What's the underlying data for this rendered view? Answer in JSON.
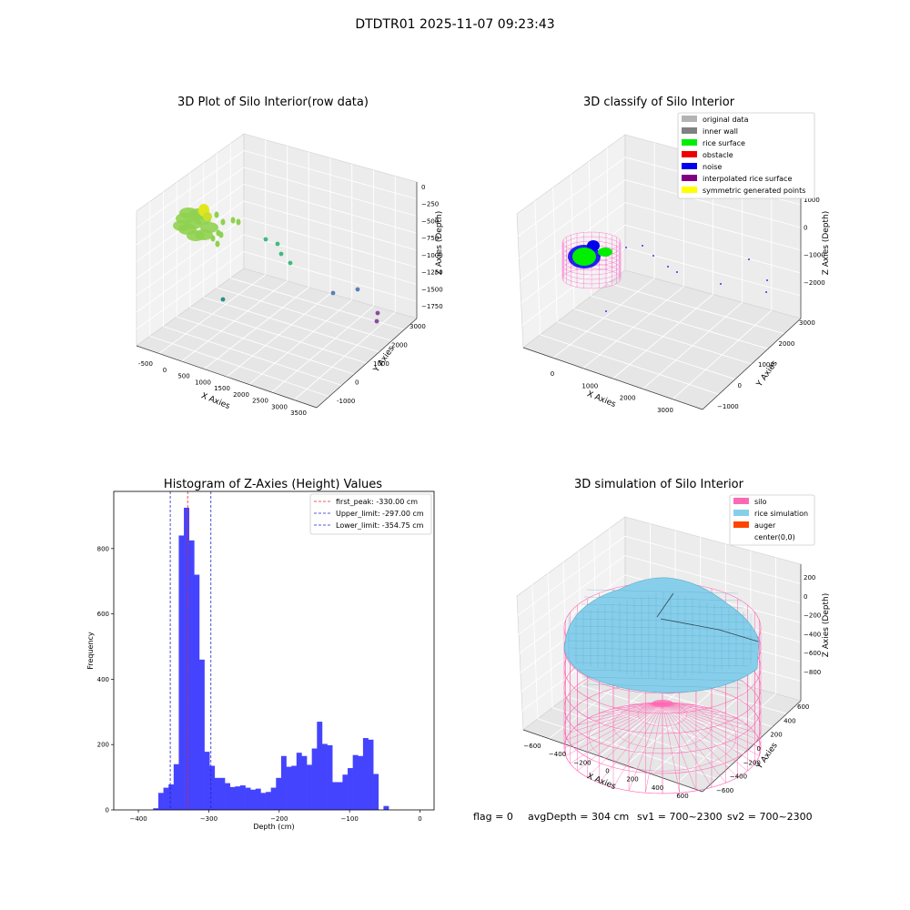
{
  "suptitle": "DTDTR01 2025-11-07 09:23:43",
  "footer": {
    "flag": "flag = 0",
    "avg": "avgDepth = 304 cm",
    "sv1": "sv1 = 700~2300",
    "sv2": "sv2 = 700~2300"
  },
  "chart_data": [
    {
      "type": "scatter",
      "title": "3D Plot of Silo Interior(row data)",
      "xlabel": "X Axies",
      "ylabel": "Y Axies",
      "zlabel": "Z Axies (Depth)",
      "x_ticks": [
        "-500",
        "0",
        "500",
        "1000",
        "1500",
        "2000",
        "2500",
        "3000",
        "3500"
      ],
      "y_ticks": [
        "-1000",
        "0",
        "1000",
        "2000",
        "3000"
      ],
      "z_ticks": [
        "0",
        "−250",
        "−500",
        "−750",
        "−1000",
        "−1250",
        "−1500",
        "−1750"
      ],
      "colors": {
        "cluster": "#8fd14f",
        "cluster_top": "#e3e61c",
        "mid": "#3ebb80",
        "low": "#2a8f8a",
        "far": "#5a7fb8",
        "deep": "#8a4aa0"
      }
    },
    {
      "type": "scatter",
      "title": "3D classify of Silo Interior",
      "xlabel": "X Axies",
      "ylabel": "Y Axies",
      "zlabel": "Z Axies (Depth)",
      "x_ticks": [
        "0",
        "1000",
        "2000",
        "3000"
      ],
      "y_ticks": [
        "−1000",
        "0",
        "1000",
        "2000",
        "3000"
      ],
      "z_ticks": [
        "1000",
        "0",
        "−1000",
        "−2000"
      ],
      "legend": [
        {
          "label": "original data",
          "color": "#b3b3b3"
        },
        {
          "label": "inner wall",
          "color": "#808080"
        },
        {
          "label": "rice surface",
          "color": "#00ee00"
        },
        {
          "label": "obstacle",
          "color": "#ee0000"
        },
        {
          "label": "noise",
          "color": "#0000ee"
        },
        {
          "label": "interpolated rice surface",
          "color": "#800080"
        },
        {
          "label": "symmetric generated points",
          "color": "#ffff00"
        }
      ],
      "legend_position": "top-right"
    },
    {
      "type": "bar",
      "title": "Histogram of Z-Axies (Height) Values",
      "xlabel": "Depth (cm)",
      "ylabel": "Frequency",
      "xlim": [
        -435,
        20
      ],
      "ylim": [
        0,
        975
      ],
      "x_ticks": [
        -400,
        -300,
        -200,
        -100,
        0
      ],
      "x_tick_labels": [
        "−400",
        "−300",
        "−200",
        "−100",
        "0"
      ],
      "y_ticks": [
        0,
        200,
        400,
        600,
        800
      ],
      "y_tick_labels": [
        "0",
        "200",
        "400",
        "600",
        "800"
      ],
      "bin_start": -379,
      "bin_width": 7.27,
      "values": [
        5,
        52,
        68,
        78,
        140,
        840,
        925,
        825,
        720,
        460,
        178,
        135,
        98,
        98,
        82,
        70,
        72,
        75,
        68,
        62,
        65,
        52,
        55,
        68,
        98,
        165,
        132,
        135,
        175,
        165,
        138,
        188,
        270,
        202,
        198,
        85,
        85,
        108,
        128,
        168,
        165,
        220,
        215,
        110,
        0,
        12
      ],
      "bar_color": "#4444ff",
      "lines": [
        {
          "x": -330.0,
          "label": "first_peak: -330.00 cm",
          "color": "#ee2222"
        },
        {
          "x": -297.0,
          "label": "Upper_limit: -297.00 cm",
          "color": "#2222cc"
        },
        {
          "x": -354.75,
          "label": "Lower_limit: -354.75 cm",
          "color": "#2222cc"
        }
      ],
      "legend_position": "top-right"
    },
    {
      "type": "surface",
      "title": "3D simulation of Silo Interior",
      "xlabel": "X Axies",
      "ylabel": "Y Axies",
      "zlabel": "Z Axies (Depth)",
      "x_ticks": [
        "−600",
        "−400",
        "−200",
        "0",
        "200",
        "400",
        "600"
      ],
      "y_ticks": [
        "−600",
        "−400",
        "−200",
        "0",
        "200",
        "400",
        "600"
      ],
      "z_ticks": [
        "200",
        "0",
        "−200",
        "−400",
        "−600",
        "−800"
      ],
      "legend": [
        {
          "label": "silo",
          "color": "#ff69b4"
        },
        {
          "label": "rice simulation",
          "color": "#87ceeb"
        },
        {
          "label": "auger",
          "color": "#ff4500"
        },
        {
          "label": "center(0,0)",
          "color": "#ffffff"
        }
      ],
      "legend_position": "top-right"
    }
  ]
}
